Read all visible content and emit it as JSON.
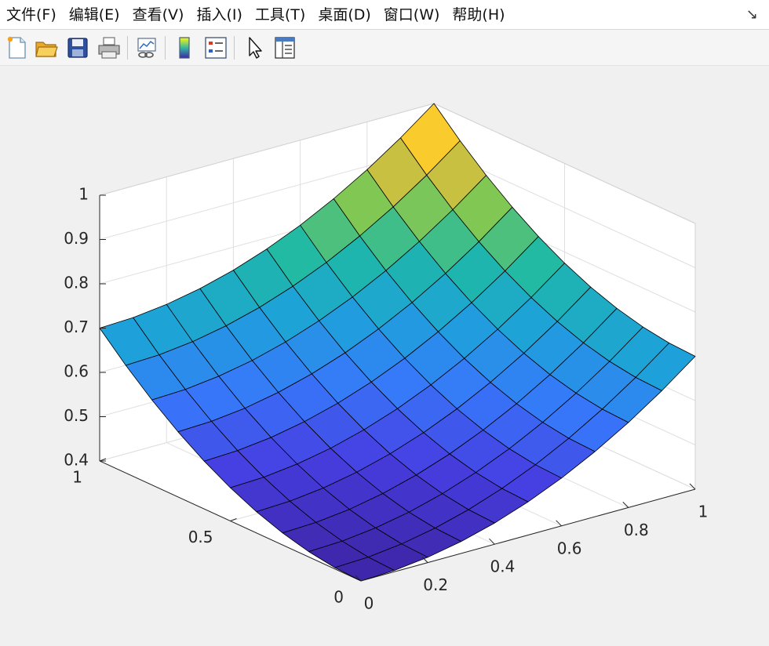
{
  "menu": {
    "items": [
      "文件(F)",
      "编辑(E)",
      "查看(V)",
      "插入(I)",
      "工具(T)",
      "桌面(D)",
      "窗口(W)",
      "帮助(H)"
    ],
    "dock_arrow": "↘"
  },
  "toolbar": {
    "icons": [
      "new-figure-icon",
      "open-file-icon",
      "save-icon",
      "print-icon",
      "link-plot-icon",
      "insert-colorbar-icon",
      "insert-legend-icon",
      "edit-plot-arrow-icon",
      "property-inspector-icon"
    ]
  },
  "chart_data": {
    "type": "surface",
    "title": "",
    "xlabel": "",
    "ylabel": "",
    "zlabel": "",
    "x": [
      0,
      0.1,
      0.2,
      0.3,
      0.4,
      0.5,
      0.6,
      0.7,
      0.8,
      0.9,
      1.0
    ],
    "y": [
      0,
      0.1,
      0.2,
      0.3,
      0.4,
      0.5,
      0.6,
      0.7,
      0.8,
      0.9,
      1.0
    ],
    "z_function": "0.4 + 0.3 * x^2 + 0.3 * y^2",
    "corner_values": {
      "x0_y0": 0.4,
      "x1_y0": 0.7,
      "x0_y1": 0.7,
      "x1_y1": 1.0
    },
    "xlim": [
      0,
      1
    ],
    "ylim": [
      0,
      1
    ],
    "zlim": [
      0.4,
      1
    ],
    "xticks": [
      "0",
      "0.2",
      "0.4",
      "0.6",
      "0.8",
      "1"
    ],
    "yticks": [
      "0",
      "0.5",
      "1"
    ],
    "zticks": [
      "0.4",
      "0.5",
      "0.6",
      "0.7",
      "0.8",
      "0.9",
      "1"
    ],
    "colormap": "parula",
    "grid": true,
    "background_color": "#ffffff"
  }
}
